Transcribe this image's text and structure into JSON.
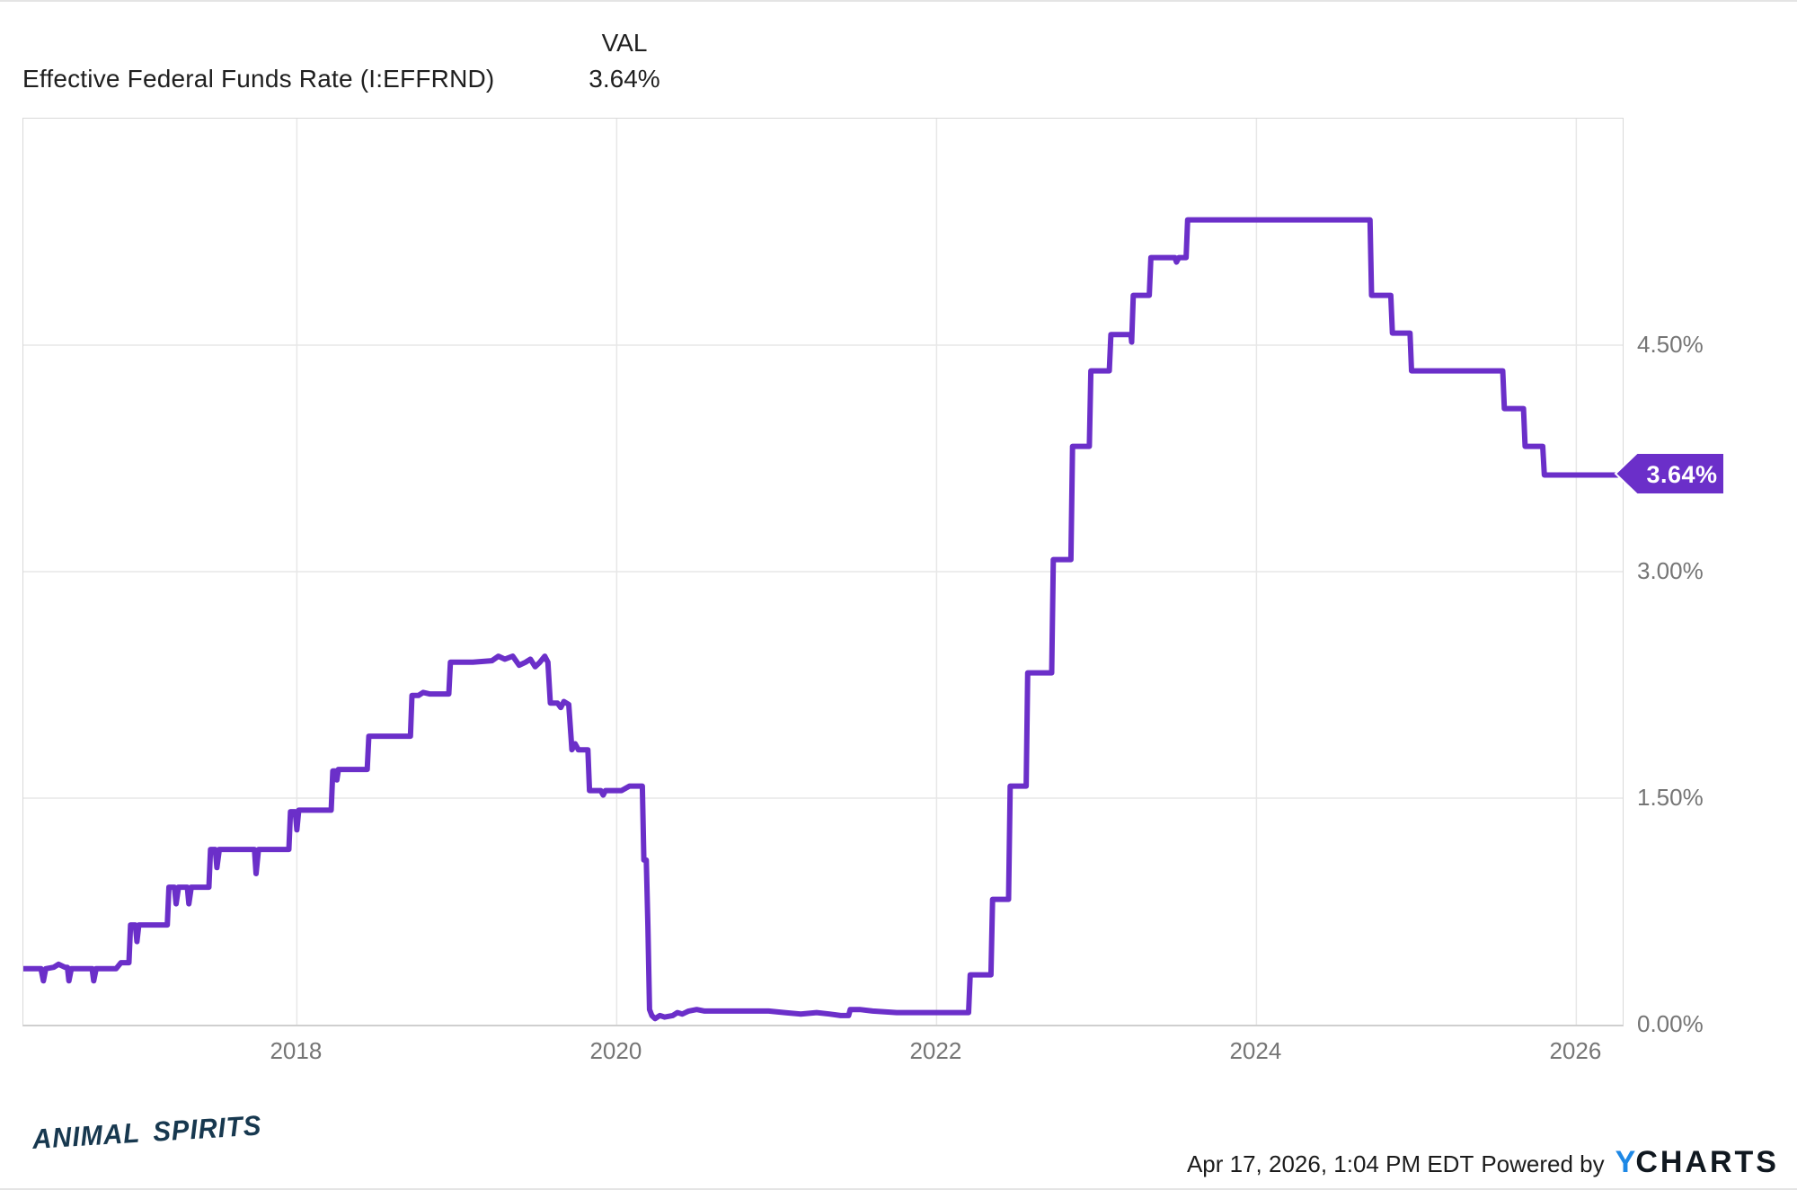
{
  "header": {
    "title": "Effective Federal Funds Rate (I:EFFRND)",
    "val_label": "VAL",
    "val_value": "3.64%"
  },
  "footer": {
    "brand": "ANIMAL SPIRITS",
    "timestamp": "Apr 17, 2026, 1:04 PM EDT",
    "powered_by": "Powered by",
    "logo_y": "Y",
    "logo_charts": "CHARTS"
  },
  "colors": {
    "line": "#6B2FC9",
    "tag_bg": "#6B2FC9",
    "tag_text": "#ffffff",
    "grid": "#e7e7e7",
    "axis_border": "#d9d9d9",
    "tick_text": "#757575",
    "title_text": "#1f1f1f",
    "brand_navy": "#17384f",
    "ycharts_blue": "#1e88e5",
    "ycharts_dark": "#101820"
  },
  "chart_data": {
    "type": "line",
    "title": "Effective Federal Funds Rate (I:EFFRND)",
    "unit": "%",
    "grid": true,
    "legend_position": "none",
    "last_value": 3.64,
    "last_value_label": "3.64%",
    "x_domain": [
      2016.29,
      2026.29
    ],
    "y_domain": [
      0,
      6
    ],
    "x_ticks": [
      {
        "value": 2018,
        "label": "2018"
      },
      {
        "value": 2020,
        "label": "2020"
      },
      {
        "value": 2022,
        "label": "2022"
      },
      {
        "value": 2024,
        "label": "2024"
      },
      {
        "value": 2026,
        "label": "2026"
      }
    ],
    "y_ticks": [
      {
        "value": 4.5,
        "label": "4.50%"
      },
      {
        "value": 3.0,
        "label": "3.00%"
      },
      {
        "value": 1.5,
        "label": "1.50%"
      },
      {
        "value": 0.0,
        "label": "0.00%"
      }
    ],
    "series": [
      {
        "name": "Effective Federal Funds Rate",
        "points": [
          [
            2016.29,
            0.37
          ],
          [
            2016.4,
            0.37
          ],
          [
            2016.415,
            0.29
          ],
          [
            2016.43,
            0.37
          ],
          [
            2016.48,
            0.38
          ],
          [
            2016.51,
            0.4
          ],
          [
            2016.55,
            0.38
          ],
          [
            2016.565,
            0.38
          ],
          [
            2016.575,
            0.29
          ],
          [
            2016.59,
            0.37
          ],
          [
            2016.72,
            0.37
          ],
          [
            2016.73,
            0.29
          ],
          [
            2016.745,
            0.37
          ],
          [
            2016.87,
            0.37
          ],
          [
            2016.9,
            0.41
          ],
          [
            2016.95,
            0.41
          ],
          [
            2016.96,
            0.66
          ],
          [
            2016.99,
            0.66
          ],
          [
            2017.0,
            0.55
          ],
          [
            2017.012,
            0.66
          ],
          [
            2017.19,
            0.66
          ],
          [
            2017.2,
            0.91
          ],
          [
            2017.235,
            0.91
          ],
          [
            2017.245,
            0.8
          ],
          [
            2017.26,
            0.91
          ],
          [
            2017.315,
            0.91
          ],
          [
            2017.325,
            0.8
          ],
          [
            2017.34,
            0.91
          ],
          [
            2017.45,
            0.91
          ],
          [
            2017.46,
            1.16
          ],
          [
            2017.49,
            1.16
          ],
          [
            2017.5,
            1.04
          ],
          [
            2017.515,
            1.16
          ],
          [
            2017.735,
            1.16
          ],
          [
            2017.745,
            1.0
          ],
          [
            2017.76,
            1.16
          ],
          [
            2017.95,
            1.16
          ],
          [
            2017.96,
            1.41
          ],
          [
            2017.99,
            1.41
          ],
          [
            2018.0,
            1.29
          ],
          [
            2018.012,
            1.42
          ],
          [
            2018.215,
            1.42
          ],
          [
            2018.225,
            1.68
          ],
          [
            2018.24,
            1.68
          ],
          [
            2018.25,
            1.62
          ],
          [
            2018.26,
            1.69
          ],
          [
            2018.44,
            1.69
          ],
          [
            2018.45,
            1.91
          ],
          [
            2018.71,
            1.91
          ],
          [
            2018.72,
            2.18
          ],
          [
            2018.76,
            2.18
          ],
          [
            2018.79,
            2.2
          ],
          [
            2018.83,
            2.19
          ],
          [
            2018.95,
            2.19
          ],
          [
            2018.96,
            2.4
          ],
          [
            2019.1,
            2.4
          ],
          [
            2019.22,
            2.41
          ],
          [
            2019.26,
            2.44
          ],
          [
            2019.3,
            2.42
          ],
          [
            2019.35,
            2.44
          ],
          [
            2019.39,
            2.38
          ],
          [
            2019.43,
            2.4
          ],
          [
            2019.46,
            2.42
          ],
          [
            2019.49,
            2.37
          ],
          [
            2019.52,
            2.4
          ],
          [
            2019.55,
            2.44
          ],
          [
            2019.57,
            2.4
          ],
          [
            2019.585,
            2.13
          ],
          [
            2019.63,
            2.13
          ],
          [
            2019.65,
            2.1
          ],
          [
            2019.67,
            2.14
          ],
          [
            2019.7,
            2.12
          ],
          [
            2019.715,
            1.9
          ],
          [
            2019.72,
            1.82
          ],
          [
            2019.74,
            1.86
          ],
          [
            2019.76,
            1.82
          ],
          [
            2019.82,
            1.82
          ],
          [
            2019.83,
            1.55
          ],
          [
            2019.9,
            1.55
          ],
          [
            2019.915,
            1.52
          ],
          [
            2019.93,
            1.55
          ],
          [
            2020.03,
            1.55
          ],
          [
            2020.08,
            1.58
          ],
          [
            2020.16,
            1.58
          ],
          [
            2020.17,
            1.09
          ],
          [
            2020.185,
            1.09
          ],
          [
            2020.195,
            0.65
          ],
          [
            2020.205,
            0.1
          ],
          [
            2020.22,
            0.06
          ],
          [
            2020.24,
            0.04
          ],
          [
            2020.27,
            0.06
          ],
          [
            2020.3,
            0.05
          ],
          [
            2020.35,
            0.06
          ],
          [
            2020.38,
            0.08
          ],
          [
            2020.41,
            0.07
          ],
          [
            2020.45,
            0.09
          ],
          [
            2020.5,
            0.1
          ],
          [
            2020.55,
            0.09
          ],
          [
            2020.65,
            0.09
          ],
          [
            2020.8,
            0.09
          ],
          [
            2020.95,
            0.09
          ],
          [
            2021.05,
            0.08
          ],
          [
            2021.15,
            0.07
          ],
          [
            2021.25,
            0.08
          ],
          [
            2021.33,
            0.07
          ],
          [
            2021.4,
            0.06
          ],
          [
            2021.45,
            0.06
          ],
          [
            2021.46,
            0.1
          ],
          [
            2021.52,
            0.1
          ],
          [
            2021.6,
            0.09
          ],
          [
            2021.75,
            0.08
          ],
          [
            2021.9,
            0.08
          ],
          [
            2022.05,
            0.08
          ],
          [
            2022.2,
            0.08
          ],
          [
            2022.21,
            0.33
          ],
          [
            2022.34,
            0.33
          ],
          [
            2022.35,
            0.83
          ],
          [
            2022.45,
            0.83
          ],
          [
            2022.46,
            1.58
          ],
          [
            2022.56,
            1.58
          ],
          [
            2022.57,
            2.33
          ],
          [
            2022.72,
            2.33
          ],
          [
            2022.73,
            3.08
          ],
          [
            2022.84,
            3.08
          ],
          [
            2022.85,
            3.83
          ],
          [
            2022.955,
            3.83
          ],
          [
            2022.965,
            4.33
          ],
          [
            2023.08,
            4.33
          ],
          [
            2023.09,
            4.57
          ],
          [
            2023.215,
            4.57
          ],
          [
            2023.22,
            4.52
          ],
          [
            2023.23,
            4.83
          ],
          [
            2023.33,
            4.83
          ],
          [
            2023.34,
            5.08
          ],
          [
            2023.49,
            5.08
          ],
          [
            2023.5,
            5.05
          ],
          [
            2023.515,
            5.08
          ],
          [
            2023.56,
            5.08
          ],
          [
            2023.57,
            5.33
          ],
          [
            2024.71,
            5.33
          ],
          [
            2024.72,
            4.83
          ],
          [
            2024.84,
            4.83
          ],
          [
            2024.85,
            4.58
          ],
          [
            2024.96,
            4.58
          ],
          [
            2024.97,
            4.33
          ],
          [
            2025.54,
            4.33
          ],
          [
            2025.55,
            4.08
          ],
          [
            2025.67,
            4.08
          ],
          [
            2025.68,
            3.83
          ],
          [
            2025.79,
            3.83
          ],
          [
            2025.8,
            3.64
          ],
          [
            2026.29,
            3.64
          ]
        ]
      }
    ]
  }
}
